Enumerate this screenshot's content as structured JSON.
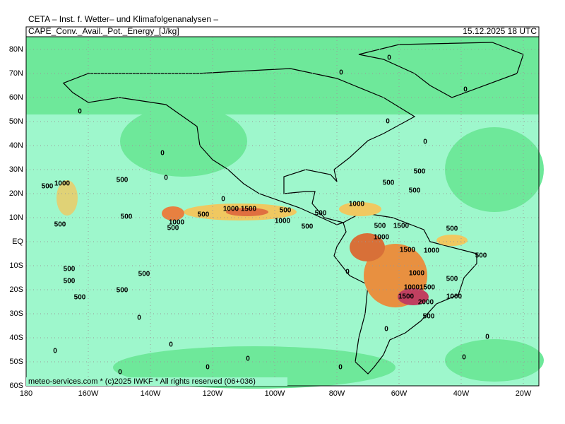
{
  "header": {
    "institute": "CETA – Inst. f. Wetter– und Klimafolgenanalysen –",
    "field": "CAPE_Conv._Avail._Pot._Energy_[J/kg]",
    "datetime": "15.12.2025  18 UTC"
  },
  "axes": {
    "lat_labels": [
      "80N",
      "70N",
      "60N",
      "50N",
      "40N",
      "30N",
      "20N",
      "10N",
      "EQ",
      "10S",
      "20S",
      "30S",
      "40S",
      "50S",
      "60S"
    ],
    "lon_labels": [
      "180",
      "160W",
      "140W",
      "120W",
      "100W",
      "80W",
      "60W",
      "40W",
      "20W"
    ]
  },
  "footer": "meteo-services.com * (c)2025 IWKF * All rights reserved (06+036)",
  "contour_labels": [
    "0",
    "0",
    "0",
    "0",
    "0",
    "0",
    "0",
    "0",
    "0",
    "500",
    "1000",
    "500",
    "500",
    "500",
    "500",
    "1000",
    "500",
    "1000",
    "500",
    "500",
    "500",
    "1000",
    "1500",
    "500",
    "1000",
    "500",
    "500",
    "500",
    "1500",
    "500",
    "1000",
    "1500",
    "1000",
    "500",
    "500",
    "500",
    "500",
    "500",
    "500",
    "1000",
    "500",
    "1000",
    "1500",
    "1000",
    "1500",
    "2000",
    "500",
    "0",
    "0",
    "0",
    "0",
    "0",
    "0",
    "0",
    "0",
    "0",
    "0",
    "0"
  ]
}
